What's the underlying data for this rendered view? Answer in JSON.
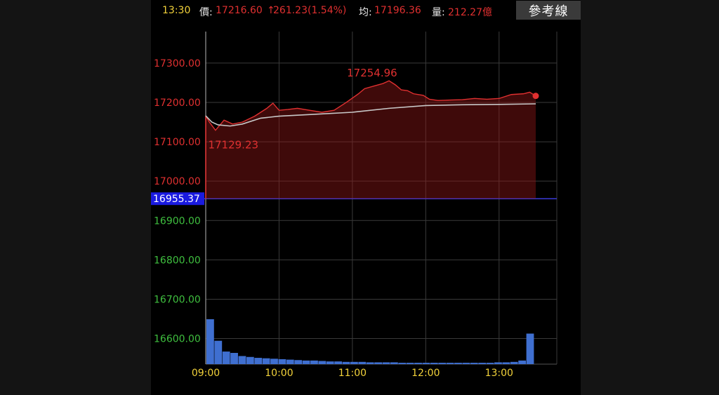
{
  "header": {
    "time": "13:30",
    "price_label": "價:",
    "price": "17216.60",
    "change": "261.23(1.54%)",
    "avg_label": "均:",
    "avg": "17196.36",
    "vol_label": "量:",
    "volume": "212.27億",
    "ref_button": "參考線"
  },
  "colors": {
    "up": "#e03030",
    "down": "#3fbf3f",
    "time": "#f2d23a",
    "avg_line": "#c8c8c8",
    "ref_line": "#3a3ad8",
    "volume": "#3f6fd0"
  },
  "chart_data": {
    "type": "line",
    "x_ticks": [
      "09:00",
      "10:00",
      "11:00",
      "12:00",
      "13:00"
    ],
    "y_ticks": [
      "17300.00",
      "17200.00",
      "17100.00",
      "17000.00",
      "16900.00",
      "16800.00",
      "16700.00",
      "16600.00"
    ],
    "ref_label": "16955.37",
    "reference": 16955.37,
    "ylim": [
      16535,
      17380
    ],
    "high_label": "17254.96",
    "low_label": "17129.23",
    "price": {
      "name": "價",
      "x": [
        0,
        3,
        8,
        15,
        22,
        30,
        40,
        50,
        55,
        60,
        67,
        75,
        85,
        95,
        105,
        115,
        125,
        130,
        138,
        145,
        150,
        155,
        160,
        165,
        170,
        178,
        183,
        190,
        200,
        210,
        220,
        230,
        240,
        250,
        260,
        265,
        270
      ],
      "y": [
        17166,
        17150,
        17129.23,
        17155,
        17145,
        17150,
        17165,
        17185,
        17198,
        17180,
        17182,
        17185,
        17180,
        17175,
        17180,
        17200,
        17222,
        17235,
        17242,
        17248,
        17254.96,
        17245,
        17232,
        17230,
        17222,
        17218,
        17208,
        17205,
        17206,
        17207,
        17210,
        17208,
        17210,
        17220,
        17222,
        17226,
        17216.6
      ]
    },
    "average": {
      "name": "均",
      "x": [
        0,
        5,
        10,
        20,
        30,
        45,
        60,
        90,
        120,
        150,
        180,
        210,
        240,
        270
      ],
      "y": [
        17166,
        17150,
        17143,
        17140,
        17145,
        17160,
        17165,
        17170,
        17175,
        17185,
        17192,
        17194,
        17195,
        17196.36
      ]
    },
    "volume": {
      "name": "量",
      "ylim": [
        0,
        100
      ],
      "samples": [
        100,
        52,
        28,
        25,
        18,
        16,
        14,
        13,
        12,
        11,
        10,
        9,
        8,
        8,
        7,
        6,
        6,
        5,
        5,
        5,
        4,
        4,
        4,
        4,
        3,
        3,
        3,
        3,
        3,
        3,
        3,
        3,
        3,
        3,
        3,
        3,
        4,
        4,
        5,
        8,
        68
      ]
    }
  }
}
